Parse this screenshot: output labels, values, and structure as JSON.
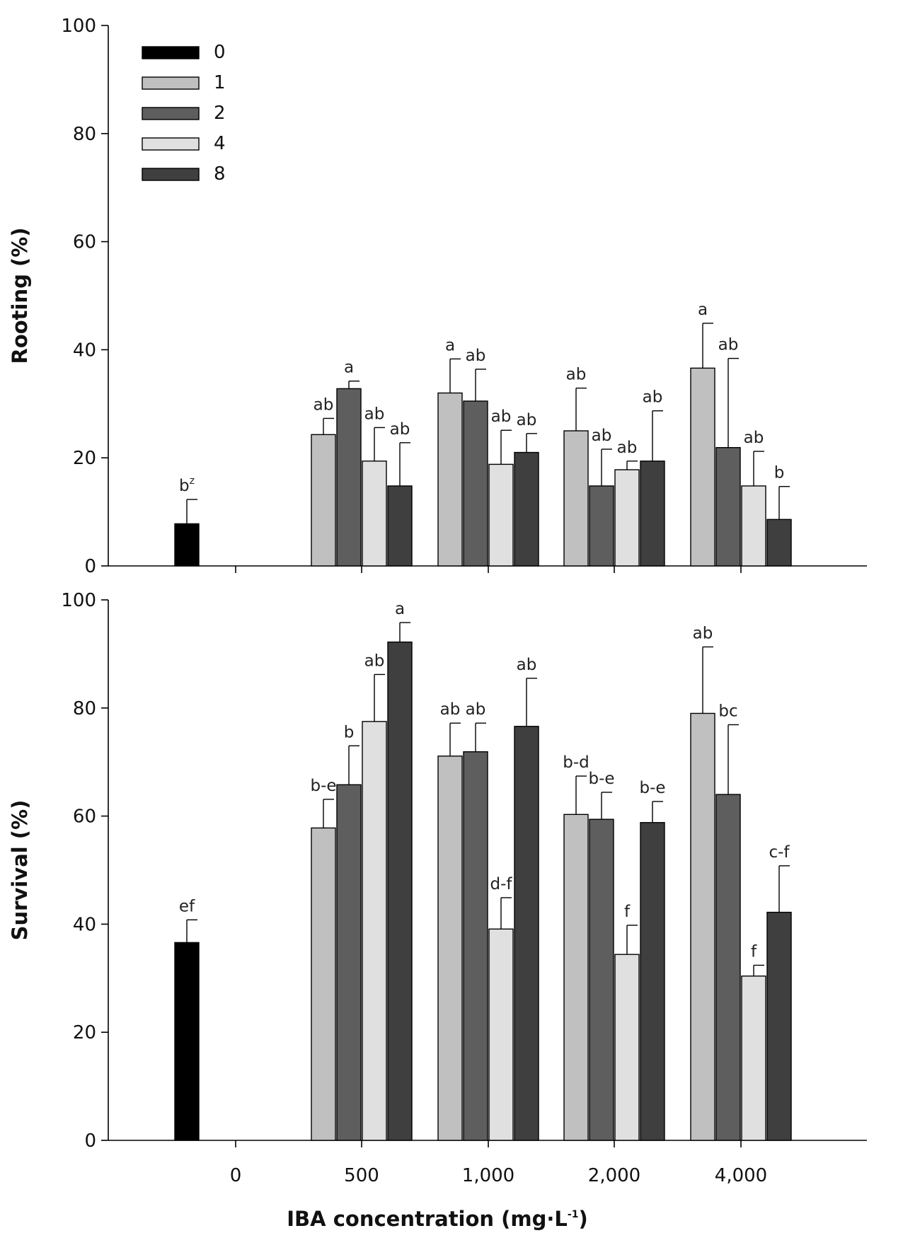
{
  "chart_data": [
    {
      "type": "bar",
      "ylabel": "Rooting (%)",
      "xlabel": "",
      "ylim": [
        0,
        100
      ],
      "yticks": [
        "0",
        "20",
        "40",
        "60",
        "80",
        "100"
      ],
      "categories": [
        "0",
        "500",
        "1,000",
        "2,000",
        "4,000"
      ],
      "legend": {
        "placement": "top-left",
        "entries": [
          "0",
          "1",
          "2",
          "4",
          "8"
        ]
      },
      "colors": [
        "#000000",
        "#c0c0c0",
        "#5e5e5e",
        "#e0e0e0",
        "#3f3f3f"
      ],
      "series": [
        {
          "name": "0",
          "values": [
            7.8,
            null,
            null,
            null,
            null
          ],
          "errors": [
            4.5,
            null,
            null,
            null,
            null
          ],
          "letters": [
            "b",
            null,
            null,
            null,
            null
          ],
          "superscripts": [
            "z",
            null,
            null,
            null,
            null
          ]
        },
        {
          "name": "1",
          "values": [
            null,
            24.3,
            32.0,
            25.0,
            36.6
          ],
          "errors": [
            null,
            3.0,
            6.3,
            7.9,
            8.3
          ],
          "letters": [
            null,
            "ab",
            "a",
            "ab",
            "a"
          ]
        },
        {
          "name": "2",
          "values": [
            null,
            32.8,
            30.5,
            14.8,
            21.9
          ],
          "errors": [
            null,
            1.4,
            5.9,
            6.8,
            16.5
          ],
          "letters": [
            null,
            "a",
            "ab",
            "ab",
            "ab"
          ]
        },
        {
          "name": "4",
          "values": [
            null,
            19.4,
            18.8,
            17.8,
            14.8
          ],
          "errors": [
            null,
            6.2,
            6.3,
            1.6,
            6.4
          ],
          "letters": [
            null,
            "ab",
            "ab",
            "ab",
            "ab"
          ]
        },
        {
          "name": "8",
          "values": [
            null,
            14.8,
            21.0,
            19.4,
            8.6
          ],
          "errors": [
            null,
            8.0,
            3.5,
            9.3,
            6.1
          ],
          "letters": [
            null,
            "ab",
            "ab",
            "ab",
            "b"
          ]
        }
      ]
    },
    {
      "type": "bar",
      "ylabel": "Survival (%)",
      "xlabel": "IBA concentration (mg·L-1)",
      "ylim": [
        0,
        100
      ],
      "yticks": [
        "0",
        "20",
        "40",
        "60",
        "80",
        "100"
      ],
      "categories": [
        "0",
        "500",
        "1,000",
        "2,000",
        "4,000"
      ],
      "colors": [
        "#000000",
        "#c0c0c0",
        "#5e5e5e",
        "#e0e0e0",
        "#3f3f3f"
      ],
      "series": [
        {
          "name": "0",
          "values": [
            36.6,
            null,
            null,
            null,
            null
          ],
          "errors": [
            4.2,
            null,
            null,
            null,
            null
          ],
          "letters": [
            "ef",
            null,
            null,
            null,
            null
          ]
        },
        {
          "name": "1",
          "values": [
            null,
            57.8,
            71.1,
            60.3,
            79.0
          ],
          "errors": [
            null,
            5.3,
            6.1,
            7.1,
            12.3
          ],
          "letters": [
            null,
            "b-e",
            "ab",
            "b-d",
            "ab"
          ]
        },
        {
          "name": "2",
          "values": [
            null,
            65.8,
            71.9,
            59.4,
            64.0
          ],
          "errors": [
            null,
            7.2,
            5.3,
            5.0,
            12.9
          ],
          "letters": [
            null,
            "b",
            "ab",
            "b-e",
            "bc"
          ]
        },
        {
          "name": "4",
          "values": [
            null,
            77.5,
            39.1,
            34.4,
            30.4
          ],
          "errors": [
            null,
            8.7,
            5.8,
            5.4,
            2.0
          ],
          "letters": [
            null,
            "ab",
            "d-f",
            "f",
            "f"
          ]
        },
        {
          "name": "8",
          "values": [
            null,
            92.2,
            76.6,
            58.8,
            42.2
          ],
          "errors": [
            null,
            3.6,
            8.9,
            3.9,
            8.6
          ],
          "letters": [
            null,
            "a",
            "ab",
            "b-e",
            "c-f"
          ]
        }
      ]
    }
  ],
  "xaxis_title": {
    "main": "IBA concentration (mg·L",
    "sup": "-1",
    "close": ")"
  }
}
